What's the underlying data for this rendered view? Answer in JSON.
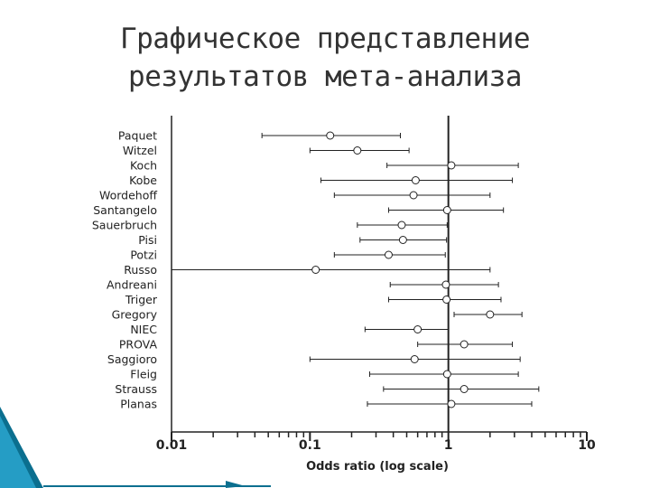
{
  "slide": {
    "title_line1": "Графическое представление",
    "title_line2": "результатов мета-анализа"
  },
  "colors": {
    "title": "#333333",
    "ink": "#222222",
    "accent_dark": "#0b6f8f",
    "accent_light": "#2aa6cf"
  },
  "chart_data": {
    "type": "scatter",
    "title": "",
    "xlabel": "Odds ratio (log scale)",
    "ylabel": "",
    "x_scale": "log",
    "xlim": [
      0.01,
      10
    ],
    "x_ticks": [
      {
        "value": 0.01,
        "label": "0.01"
      },
      {
        "value": 0.1,
        "label": "0.1"
      },
      {
        "value": 1,
        "label": "1"
      },
      {
        "value": 10,
        "label": "10"
      }
    ],
    "reference_line": 1,
    "grid": false,
    "legend": "none",
    "studies": [
      {
        "name": "Paquet",
        "or": 0.14,
        "lo": 0.045,
        "hi": 0.45
      },
      {
        "name": "Witzel",
        "or": 0.22,
        "lo": 0.1,
        "hi": 0.52
      },
      {
        "name": "Koch",
        "or": 1.05,
        "lo": 0.36,
        "hi": 3.2
      },
      {
        "name": "Kobe",
        "or": 0.58,
        "lo": 0.12,
        "hi": 2.9
      },
      {
        "name": "Wordehoff",
        "or": 0.56,
        "lo": 0.15,
        "hi": 2.0
      },
      {
        "name": "Santangelo",
        "or": 0.98,
        "lo": 0.37,
        "hi": 2.5
      },
      {
        "name": "Sauerbruch",
        "or": 0.46,
        "lo": 0.22,
        "hi": 0.98
      },
      {
        "name": "Pisi",
        "or": 0.47,
        "lo": 0.23,
        "hi": 0.97
      },
      {
        "name": "Potzi",
        "or": 0.37,
        "lo": 0.15,
        "hi": 0.95
      },
      {
        "name": "Russo",
        "or": 0.11,
        "lo": 0.01,
        "hi": 2.0
      },
      {
        "name": "Andreani",
        "or": 0.96,
        "lo": 0.38,
        "hi": 2.3
      },
      {
        "name": "Triger",
        "or": 0.97,
        "lo": 0.37,
        "hi": 2.4
      },
      {
        "name": "Gregory",
        "or": 2.0,
        "lo": 1.1,
        "hi": 3.4
      },
      {
        "name": "NIEC",
        "or": 0.6,
        "lo": 0.25,
        "hi": 1.0
      },
      {
        "name": "PROVA",
        "or": 1.3,
        "lo": 0.6,
        "hi": 2.9
      },
      {
        "name": "Saggioro",
        "or": 0.57,
        "lo": 0.1,
        "hi": 3.3
      },
      {
        "name": "Fleig",
        "or": 0.98,
        "lo": 0.27,
        "hi": 3.2
      },
      {
        "name": "Strauss",
        "or": 1.3,
        "lo": 0.34,
        "hi": 4.5
      },
      {
        "name": "Planas",
        "or": 1.05,
        "lo": 0.26,
        "hi": 4.0
      }
    ]
  }
}
